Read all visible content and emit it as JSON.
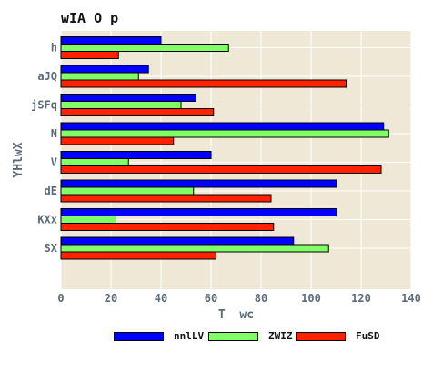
{
  "chart_data": {
    "type": "bar",
    "orientation": "horizontal",
    "title": "wIA O p",
    "xlabel": "T  wc",
    "ylabel": "YHlwX",
    "categories": [
      "h",
      "aJQ",
      "jSFq",
      "N",
      "V",
      "dE",
      "KXx",
      "SX"
    ],
    "series": [
      {
        "name": "nnlLV",
        "color": "#0000ff",
        "values": [
          40,
          35,
          54,
          129,
          60,
          110,
          110,
          93
        ]
      },
      {
        "name": "ZWIZ",
        "color": "#80ff66",
        "values": [
          67,
          31,
          48,
          131,
          27,
          53,
          22,
          107
        ]
      },
      {
        "name": "FuSD",
        "color": "#ff2200",
        "values": [
          23,
          114,
          61,
          45,
          128,
          84,
          85,
          62
        ]
      }
    ],
    "xlim": [
      0,
      140
    ],
    "xticks": [
      0,
      20,
      40,
      60,
      80,
      100,
      120,
      140
    ],
    "grid": true,
    "background": "#efe8d6",
    "grid_color": "#ffffff",
    "legend_position": "bottom"
  }
}
